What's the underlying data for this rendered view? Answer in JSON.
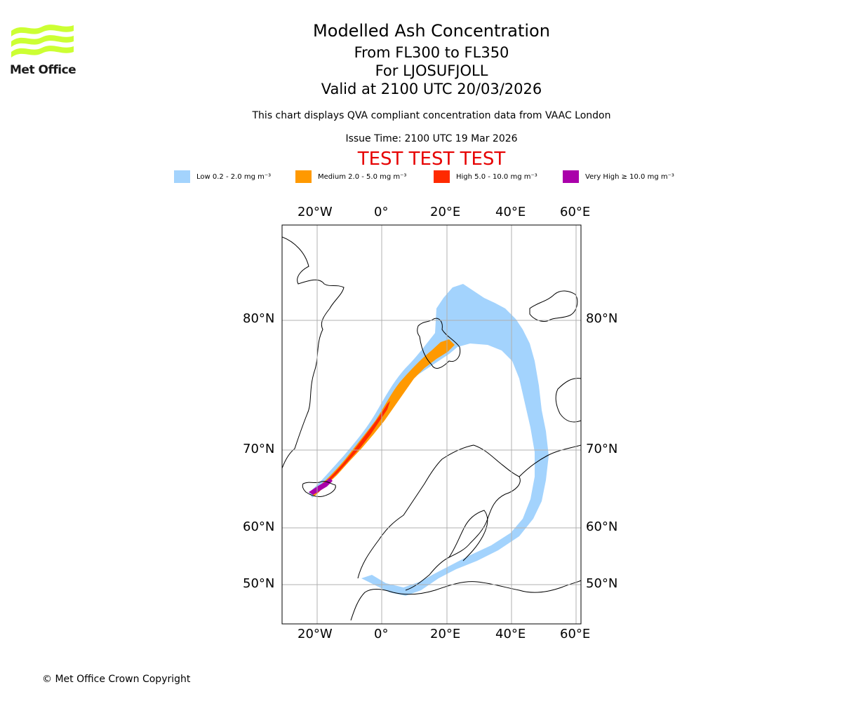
{
  "logo": {
    "text": "Met Office",
    "color": "#ccff33"
  },
  "title": {
    "main": "Modelled Ash Concentration",
    "levels": "From FL300 to FL350",
    "volcano": "For LJOSUFJOLL",
    "valid": "Valid at 2100 UTC 20/03/2026"
  },
  "subtitle": "This chart displays QVA compliant concentration data from VAAC London",
  "issue_time": "Issue Time: 2100 UTC 19 Mar 2026",
  "test_banner": "TEST TEST TEST",
  "legend": [
    {
      "label": "Low 0.2 - 2.0 mg m⁻³",
      "color": "#a3d3fd"
    },
    {
      "label": "Medium 2.0 - 5.0 mg m⁻³",
      "color": "#ff9900"
    },
    {
      "label": "High 5.0 - 10.0 mg m⁻³",
      "color": "#ff2a00"
    },
    {
      "label": "Very High ≥ 10.0 mg m⁻³",
      "color": "#aa00aa"
    }
  ],
  "map": {
    "lon_ticks": [
      "20°W",
      "0°",
      "20°E",
      "40°E",
      "60°E"
    ],
    "lat_ticks": [
      "80°N",
      "70°N",
      "60°N",
      "50°N"
    ],
    "lon_range": [
      -30,
      62
    ],
    "lat_range": [
      45,
      86
    ],
    "gridlines": true
  },
  "copyright": "© Met Office Crown Copyright"
}
